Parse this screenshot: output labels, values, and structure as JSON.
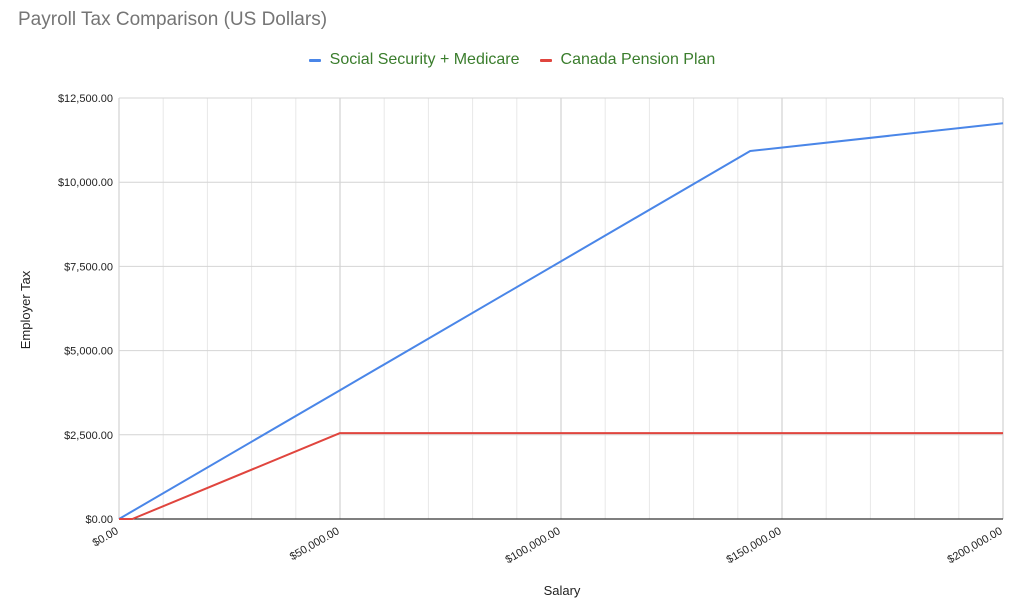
{
  "chart_data": {
    "type": "line",
    "title": "Payroll Tax Comparison (US Dollars)",
    "xlabel": "Salary",
    "ylabel": "Employer Tax",
    "xlim": [
      0,
      200000
    ],
    "ylim": [
      0,
      12500
    ],
    "x_ticks": [
      {
        "value": 0,
        "label": "$0.00"
      },
      {
        "value": 50000,
        "label": "$50,000.00"
      },
      {
        "value": 100000,
        "label": "$100,000.00"
      },
      {
        "value": 150000,
        "label": "$150,000.00"
      },
      {
        "value": 200000,
        "label": "$200,000.00"
      }
    ],
    "y_ticks": [
      {
        "value": 0,
        "label": "$0.00"
      },
      {
        "value": 2500,
        "label": "$2,500.00"
      },
      {
        "value": 5000,
        "label": "$5,000.00"
      },
      {
        "value": 7500,
        "label": "$7,500.00"
      },
      {
        "value": 10000,
        "label": "$10,000.00"
      },
      {
        "value": 12500,
        "label": "$12,500.00"
      }
    ],
    "grid": true,
    "legend_position": "top",
    "series": [
      {
        "name": "Social Security + Medicare",
        "color": "#4a86e8",
        "points": [
          [
            0,
            0
          ],
          [
            50000,
            3825
          ],
          [
            142800,
            10925
          ],
          [
            200000,
            11750
          ]
        ]
      },
      {
        "name": "Canada Pension Plan",
        "color": "#e0453e",
        "points": [
          [
            0,
            0
          ],
          [
            3000,
            0
          ],
          [
            50000,
            2550
          ],
          [
            200000,
            2550
          ]
        ]
      }
    ]
  },
  "colors": {
    "title": "#757575",
    "legend_text": "#3a7d2c"
  }
}
